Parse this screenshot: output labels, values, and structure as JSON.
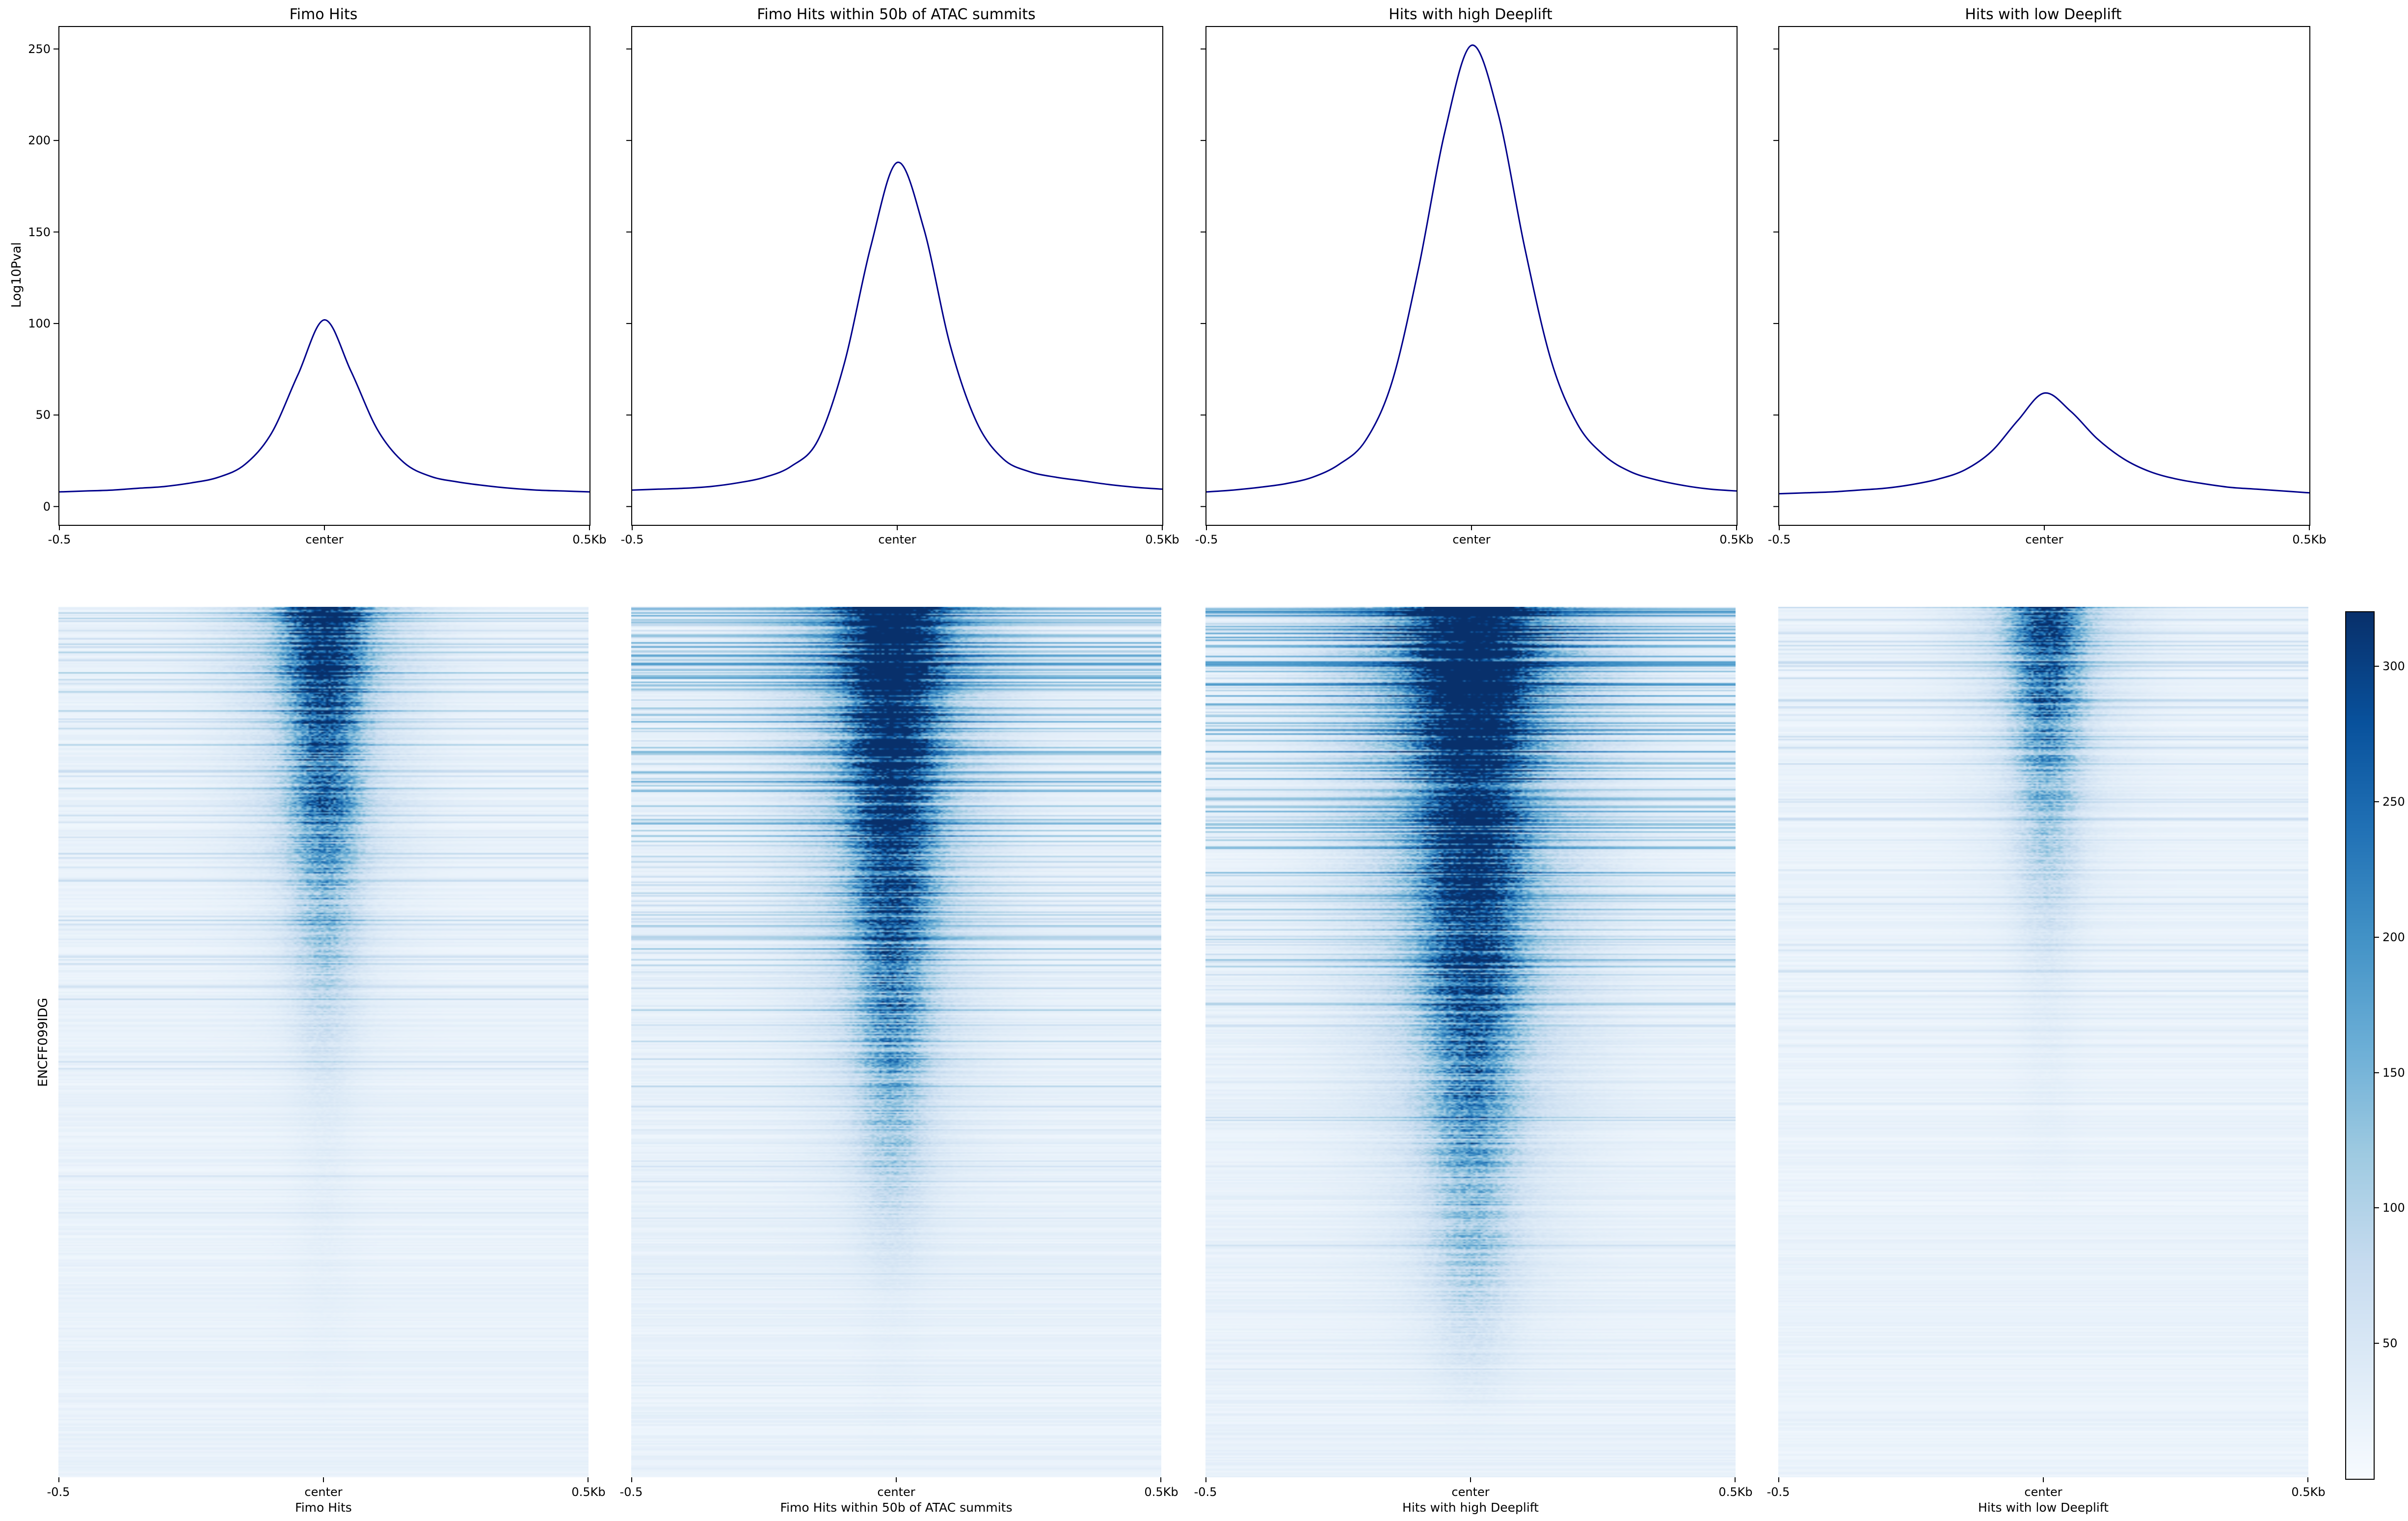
{
  "figure": {
    "background": "#ffffff",
    "x_axis_ticks": [
      "-0.5",
      "center",
      "0.5Kb"
    ],
    "profile_row": {
      "ylabel": "Log10Pval",
      "yticks": [
        0,
        50,
        100,
        150,
        200,
        250
      ],
      "ylim": [
        -10,
        262
      ],
      "line_color": "#00008b"
    },
    "heatmap_row": {
      "row_label": "ENCFF099IDG",
      "colormap": "Blues",
      "vmin": 0,
      "vmax": 320
    }
  },
  "chart_data": [
    {
      "type": "line",
      "title": "Fimo Hits",
      "ylabel": "Log10Pval",
      "yticks": [
        0,
        50,
        100,
        150,
        200,
        250
      ],
      "ylim": [
        -10,
        262
      ],
      "xticks": [
        "-0.5",
        "center",
        "0.5Kb"
      ],
      "line_color": "#00008b",
      "x": [
        -0.5,
        -0.45,
        -0.4,
        -0.35,
        -0.3,
        -0.25,
        -0.2,
        -0.15,
        -0.1,
        -0.05,
        0,
        0.05,
        0.1,
        0.15,
        0.2,
        0.25,
        0.3,
        0.35,
        0.4,
        0.45,
        0.5
      ],
      "y": [
        8,
        8.5,
        9,
        10,
        11,
        13,
        16,
        23,
        40,
        72,
        102,
        74,
        42,
        24,
        16.5,
        13.5,
        11.5,
        10,
        9,
        8.5,
        8
      ]
    },
    {
      "type": "line",
      "title": "Fimo Hits within 50b of ATAC summits",
      "yticks": [
        0,
        50,
        100,
        150,
        200,
        250
      ],
      "ylim": [
        -10,
        262
      ],
      "xticks": [
        "-0.5",
        "center",
        "0.5Kb"
      ],
      "line_color": "#00008b",
      "x": [
        -0.5,
        -0.45,
        -0.4,
        -0.35,
        -0.3,
        -0.25,
        -0.2,
        -0.15,
        -0.1,
        -0.05,
        0,
        0.05,
        0.1,
        0.15,
        0.2,
        0.25,
        0.3,
        0.35,
        0.4,
        0.45,
        0.5
      ],
      "y": [
        9,
        9.5,
        10,
        11,
        13,
        16,
        22,
        36,
        78,
        142,
        188,
        152,
        88,
        46,
        26,
        19,
        16,
        14,
        12,
        10.5,
        9.5
      ]
    },
    {
      "type": "line",
      "title": "Hits with high Deeplift",
      "yticks": [
        0,
        50,
        100,
        150,
        200,
        250
      ],
      "ylim": [
        -10,
        262
      ],
      "xticks": [
        "-0.5",
        "center",
        "0.5Kb"
      ],
      "line_color": "#00008b",
      "x": [
        -0.5,
        -0.45,
        -0.4,
        -0.35,
        -0.3,
        -0.25,
        -0.2,
        -0.15,
        -0.1,
        -0.05,
        0,
        0.05,
        0.1,
        0.15,
        0.2,
        0.25,
        0.3,
        0.35,
        0.4,
        0.45,
        0.5
      ],
      "y": [
        8,
        9,
        10.5,
        12.5,
        16,
        23,
        36,
        68,
        130,
        205,
        252,
        215,
        142,
        80,
        45,
        28,
        19,
        14.5,
        11.5,
        9.5,
        8.5
      ]
    },
    {
      "type": "line",
      "title": "Hits with low Deeplift",
      "yticks": [
        0,
        50,
        100,
        150,
        200,
        250
      ],
      "ylim": [
        -10,
        262
      ],
      "xticks": [
        "-0.5",
        "center",
        "0.5Kb"
      ],
      "line_color": "#00008b",
      "x": [
        -0.5,
        -0.45,
        -0.4,
        -0.35,
        -0.3,
        -0.25,
        -0.2,
        -0.15,
        -0.1,
        -0.05,
        0,
        0.05,
        0.1,
        0.15,
        0.2,
        0.25,
        0.3,
        0.35,
        0.4,
        0.45,
        0.5
      ],
      "y": [
        7,
        7.5,
        8,
        9,
        10,
        12,
        15,
        20,
        30,
        47,
        62,
        52,
        37,
        26,
        19,
        15,
        12.5,
        10.5,
        9.5,
        8.5,
        7.5
      ]
    },
    {
      "type": "heatmap",
      "xlabel": "Fimo Hits",
      "row_label": "ENCFF099IDG",
      "xticks": [
        "-0.5",
        "center",
        "0.5Kb"
      ],
      "colormap": "Blues",
      "vmin": 0,
      "vmax": 320,
      "render_params": {
        "peak": 270,
        "base": 22,
        "rows_frac": 0.6,
        "decay": 1.6,
        "sigma": 0.045,
        "halo": 0.32,
        "streak_prob": 0.28,
        "streak_amp": 85,
        "center": 0.5,
        "seed": 11
      }
    },
    {
      "type": "heatmap",
      "xlabel": "Fimo Hits within 50b of ATAC summits",
      "xticks": [
        "-0.5",
        "center",
        "0.5Kb"
      ],
      "colormap": "Blues",
      "vmin": 0,
      "vmax": 320,
      "render_params": {
        "peak": 315,
        "base": 24,
        "rows_frac": 0.8,
        "decay": 1.25,
        "sigma": 0.05,
        "halo": 0.38,
        "streak_prob": 0.55,
        "streak_amp": 140,
        "center": 0.49,
        "seed": 22
      }
    },
    {
      "type": "heatmap",
      "xlabel": "Hits with high Deeplift",
      "xticks": [
        "-0.5",
        "center",
        "0.5Kb"
      ],
      "colormap": "Blues",
      "vmin": 0,
      "vmax": 320,
      "render_params": {
        "peak": 335,
        "base": 24,
        "rows_frac": 0.93,
        "decay": 1.15,
        "sigma": 0.062,
        "halo": 0.42,
        "streak_prob": 0.5,
        "streak_amp": 150,
        "center": 0.5,
        "seed": 33
      }
    },
    {
      "type": "heatmap",
      "xlabel": "Hits with low Deeplift",
      "xticks": [
        "-0.5",
        "center",
        "0.5Kb"
      ],
      "colormap": "Blues",
      "vmin": 0,
      "vmax": 320,
      "render_params": {
        "peak": 185,
        "base": 20,
        "rows_frac": 0.45,
        "decay": 1.5,
        "sigma": 0.042,
        "halo": 0.3,
        "streak_prob": 0.2,
        "streak_amp": 60,
        "center": 0.505,
        "seed": 44
      }
    },
    {
      "type": "colorbar",
      "ticks": [
        50,
        100,
        150,
        200,
        250,
        300
      ],
      "vmin": 0,
      "vmax": 320,
      "colormap": "Blues"
    }
  ]
}
